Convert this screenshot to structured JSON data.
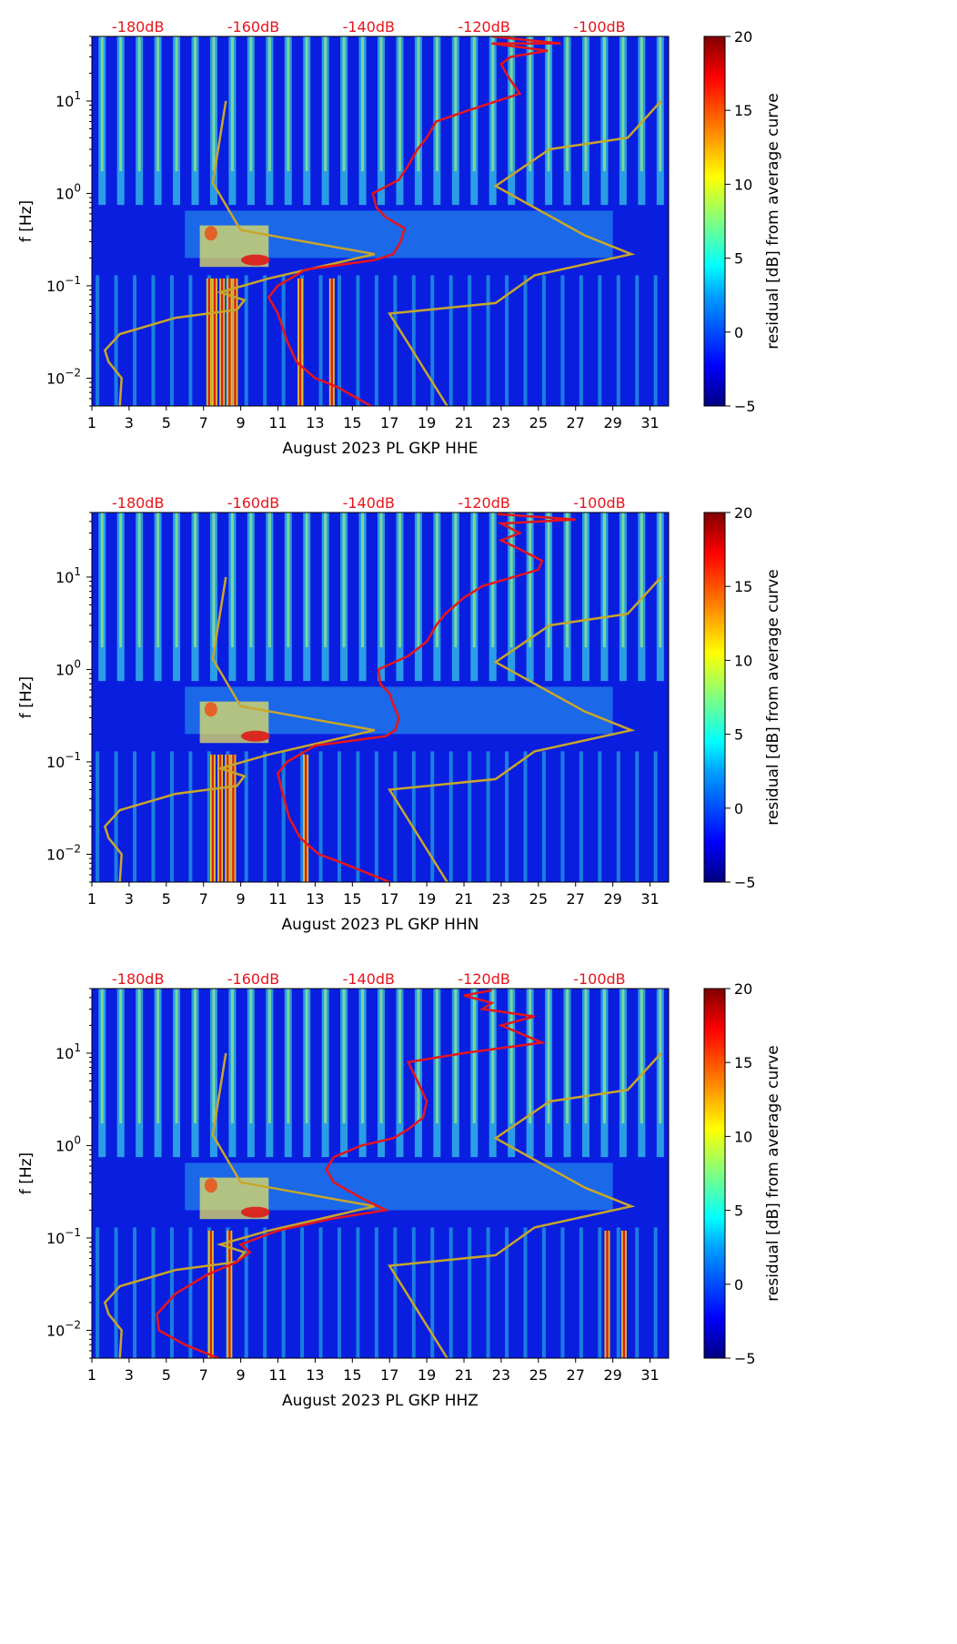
{
  "colors": {
    "noise_model": "#c8a62a",
    "average_curve": "#e8141c",
    "db_label": "#e8141c",
    "colormap": [
      "#000080",
      "#0000ff",
      "#00a0ff",
      "#00ffff",
      "#80ff80",
      "#ffff00",
      "#ff8000",
      "#ff0000",
      "#800000"
    ]
  },
  "chart_data": [
    {
      "type": "heatmap",
      "channel": "HHE",
      "xlabel": "August 2023 PL GKP  HHE",
      "ylabel": "f [Hz]",
      "colorbar_label": "residual [dB] from average curve",
      "colorbar_ticks": [
        "20",
        "15",
        "10",
        "5",
        "0",
        "−5"
      ],
      "colorbar_range": [
        -5,
        20
      ],
      "x_ticks": [
        "1",
        "3",
        "5",
        "7",
        "9",
        "11",
        "13",
        "15",
        "17",
        "19",
        "21",
        "23",
        "25",
        "27",
        "29",
        "31"
      ],
      "xlim": [
        1,
        32
      ],
      "y_scale": "log",
      "ylim": [
        0.005,
        50
      ],
      "y_ticks": [
        {
          "base": "10",
          "exp": "1"
        },
        {
          "base": "10",
          "exp": "0"
        },
        {
          "base": "10",
          "exp": "−1"
        },
        {
          "base": "10",
          "exp": "−2"
        }
      ],
      "top_labels": [
        "-180dB",
        "-160dB",
        "-140dB",
        "-120dB",
        "-100dB"
      ],
      "top_scale_db": [
        -188,
        -88
      ],
      "noise_model_lines": {
        "low": [
          [
            2.5,
            0.005
          ],
          [
            2.6,
            0.01
          ],
          [
            1.9,
            0.015
          ],
          [
            1.7,
            0.02
          ],
          [
            2.5,
            0.03
          ],
          [
            5.5,
            0.045
          ],
          [
            8.8,
            0.055
          ],
          [
            9.2,
            0.07
          ],
          [
            7.9,
            0.085
          ],
          [
            10.5,
            0.12
          ],
          [
            16.2,
            0.22
          ],
          [
            9.0,
            0.4
          ],
          [
            7.5,
            1.3
          ],
          [
            8.2,
            10
          ]
        ],
        "high": [
          [
            20.1,
            0.005
          ],
          [
            17.0,
            0.05
          ],
          [
            22.7,
            0.065
          ],
          [
            24.8,
            0.13
          ],
          [
            30.0,
            0.22
          ],
          [
            27.5,
            0.35
          ],
          [
            22.7,
            1.2
          ],
          [
            25.6,
            3.0
          ],
          [
            29.8,
            4.0
          ],
          [
            31.6,
            10
          ]
        ]
      },
      "average_curve": [
        [
          16.0,
          0.005
        ],
        [
          14.2,
          0.008
        ],
        [
          13.0,
          0.01
        ],
        [
          12.0,
          0.015
        ],
        [
          11.5,
          0.025
        ],
        [
          11.0,
          0.05
        ],
        [
          10.5,
          0.075
        ],
        [
          11.0,
          0.1
        ],
        [
          12.5,
          0.15
        ],
        [
          16.2,
          0.19
        ],
        [
          17.2,
          0.22
        ],
        [
          17.6,
          0.3
        ],
        [
          17.8,
          0.42
        ],
        [
          16.8,
          0.55
        ],
        [
          16.3,
          0.7
        ],
        [
          16.1,
          1.0
        ],
        [
          17.5,
          1.4
        ],
        [
          18.0,
          2.0
        ],
        [
          18.5,
          3.0
        ],
        [
          19.0,
          4.0
        ],
        [
          19.5,
          6.0
        ],
        [
          21.3,
          8.0
        ],
        [
          24.0,
          12.0
        ],
        [
          23.4,
          18.0
        ],
        [
          23.0,
          25.0
        ],
        [
          23.5,
          30.0
        ],
        [
          25.5,
          35.0
        ],
        [
          22.5,
          42.0
        ],
        [
          26.2,
          42.0
        ],
        [
          22.5,
          50.0
        ]
      ],
      "warm_days": [
        7.3,
        7.6,
        8.0,
        8.4,
        8.7,
        12.2,
        13.9
      ]
    },
    {
      "type": "heatmap",
      "channel": "HHN",
      "xlabel": "August 2023 PL GKP  HHN",
      "ylabel": "f [Hz]",
      "colorbar_label": "residual [dB] from average curve",
      "colorbar_ticks": [
        "20",
        "15",
        "10",
        "5",
        "0",
        "−5"
      ],
      "colorbar_range": [
        -5,
        20
      ],
      "x_ticks": [
        "1",
        "3",
        "5",
        "7",
        "9",
        "11",
        "13",
        "15",
        "17",
        "19",
        "21",
        "23",
        "25",
        "27",
        "29",
        "31"
      ],
      "xlim": [
        1,
        32
      ],
      "y_scale": "log",
      "ylim": [
        0.005,
        50
      ],
      "y_ticks": [
        {
          "base": "10",
          "exp": "1"
        },
        {
          "base": "10",
          "exp": "0"
        },
        {
          "base": "10",
          "exp": "−1"
        },
        {
          "base": "10",
          "exp": "−2"
        }
      ],
      "top_labels": [
        "-180dB",
        "-160dB",
        "-140dB",
        "-120dB",
        "-100dB"
      ],
      "top_scale_db": [
        -188,
        -88
      ],
      "noise_model_lines": {
        "low": [
          [
            2.5,
            0.005
          ],
          [
            2.6,
            0.01
          ],
          [
            1.9,
            0.015
          ],
          [
            1.7,
            0.02
          ],
          [
            2.5,
            0.03
          ],
          [
            5.5,
            0.045
          ],
          [
            8.8,
            0.055
          ],
          [
            9.2,
            0.07
          ],
          [
            7.9,
            0.085
          ],
          [
            10.5,
            0.12
          ],
          [
            16.2,
            0.22
          ],
          [
            9.0,
            0.4
          ],
          [
            7.5,
            1.3
          ],
          [
            8.2,
            10
          ]
        ],
        "high": [
          [
            20.1,
            0.005
          ],
          [
            17.0,
            0.05
          ],
          [
            22.7,
            0.065
          ],
          [
            24.8,
            0.13
          ],
          [
            30.0,
            0.22
          ],
          [
            27.5,
            0.35
          ],
          [
            22.7,
            1.2
          ],
          [
            25.6,
            3.0
          ],
          [
            29.8,
            4.0
          ],
          [
            31.6,
            10
          ]
        ]
      },
      "average_curve": [
        [
          17.0,
          0.005
        ],
        [
          14.5,
          0.008
        ],
        [
          13.2,
          0.01
        ],
        [
          12.2,
          0.015
        ],
        [
          11.6,
          0.025
        ],
        [
          11.2,
          0.05
        ],
        [
          11.0,
          0.075
        ],
        [
          11.5,
          0.1
        ],
        [
          13.0,
          0.15
        ],
        [
          16.8,
          0.19
        ],
        [
          17.3,
          0.22
        ],
        [
          17.5,
          0.3
        ],
        [
          17.2,
          0.42
        ],
        [
          17.0,
          0.55
        ],
        [
          16.5,
          0.7
        ],
        [
          16.4,
          1.0
        ],
        [
          18.0,
          1.4
        ],
        [
          19.0,
          2.0
        ],
        [
          19.5,
          3.0
        ],
        [
          20.0,
          4.0
        ],
        [
          21.0,
          6.0
        ],
        [
          22.0,
          8.0
        ],
        [
          25.0,
          12.0
        ],
        [
          25.2,
          15.0
        ],
        [
          24.0,
          20.0
        ],
        [
          23.0,
          25.0
        ],
        [
          24.0,
          30.0
        ],
        [
          23.0,
          38.0
        ],
        [
          27.0,
          42.0
        ],
        [
          22.8,
          48.0
        ]
      ],
      "warm_days": [
        7.5,
        7.9,
        8.3,
        8.6,
        12.5
      ]
    },
    {
      "type": "heatmap",
      "channel": "HHZ",
      "xlabel": "August 2023 PL GKP  HHZ",
      "ylabel": "f [Hz]",
      "colorbar_label": "residual [dB] from average curve",
      "colorbar_ticks": [
        "20",
        "15",
        "10",
        "5",
        "0",
        "−5"
      ],
      "colorbar_range": [
        -5,
        20
      ],
      "x_ticks": [
        "1",
        "3",
        "5",
        "7",
        "9",
        "11",
        "13",
        "15",
        "17",
        "19",
        "21",
        "23",
        "25",
        "27",
        "29",
        "31"
      ],
      "xlim": [
        1,
        32
      ],
      "y_scale": "log",
      "ylim": [
        0.005,
        50
      ],
      "y_ticks": [
        {
          "base": "10",
          "exp": "1"
        },
        {
          "base": "10",
          "exp": "0"
        },
        {
          "base": "10",
          "exp": "−1"
        },
        {
          "base": "10",
          "exp": "−2"
        }
      ],
      "top_labels": [
        "-180dB",
        "-160dB",
        "-140dB",
        "-120dB",
        "-100dB"
      ],
      "top_scale_db": [
        -188,
        -88
      ],
      "noise_model_lines": {
        "low": [
          [
            2.5,
            0.005
          ],
          [
            2.6,
            0.01
          ],
          [
            1.9,
            0.015
          ],
          [
            1.7,
            0.02
          ],
          [
            2.5,
            0.03
          ],
          [
            5.5,
            0.045
          ],
          [
            8.8,
            0.055
          ],
          [
            9.2,
            0.07
          ],
          [
            7.9,
            0.085
          ],
          [
            10.5,
            0.12
          ],
          [
            16.2,
            0.22
          ],
          [
            9.0,
            0.4
          ],
          [
            7.5,
            1.3
          ],
          [
            8.2,
            10
          ]
        ],
        "high": [
          [
            20.1,
            0.005
          ],
          [
            17.0,
            0.05
          ],
          [
            22.7,
            0.065
          ],
          [
            24.8,
            0.13
          ],
          [
            30.0,
            0.22
          ],
          [
            27.5,
            0.35
          ],
          [
            22.7,
            1.2
          ],
          [
            25.6,
            3.0
          ],
          [
            29.8,
            4.0
          ],
          [
            31.6,
            10
          ]
        ]
      },
      "average_curve": [
        [
          7.8,
          0.005
        ],
        [
          6.0,
          0.007
        ],
        [
          4.6,
          0.01
        ],
        [
          4.5,
          0.015
        ],
        [
          5.5,
          0.025
        ],
        [
          7.2,
          0.04
        ],
        [
          8.8,
          0.055
        ],
        [
          9.5,
          0.07
        ],
        [
          9.0,
          0.085
        ],
        [
          11.0,
          0.12
        ],
        [
          13.8,
          0.16
        ],
        [
          16.8,
          0.2
        ],
        [
          15.5,
          0.27
        ],
        [
          14.0,
          0.4
        ],
        [
          13.6,
          0.55
        ],
        [
          14.0,
          0.75
        ],
        [
          15.5,
          1.0
        ],
        [
          17.2,
          1.2
        ],
        [
          18.0,
          1.5
        ],
        [
          18.8,
          2.0
        ],
        [
          19.0,
          3.0
        ],
        [
          18.5,
          5.0
        ],
        [
          18.0,
          8.0
        ],
        [
          21.0,
          10.0
        ],
        [
          25.2,
          13.0
        ],
        [
          23.0,
          20.0
        ],
        [
          24.8,
          25.0
        ],
        [
          22.0,
          30.0
        ],
        [
          22.5,
          35.0
        ],
        [
          21.0,
          42.0
        ],
        [
          22.5,
          48.0
        ]
      ],
      "warm_days": [
        7.4,
        8.4,
        28.7,
        29.6
      ]
    }
  ]
}
